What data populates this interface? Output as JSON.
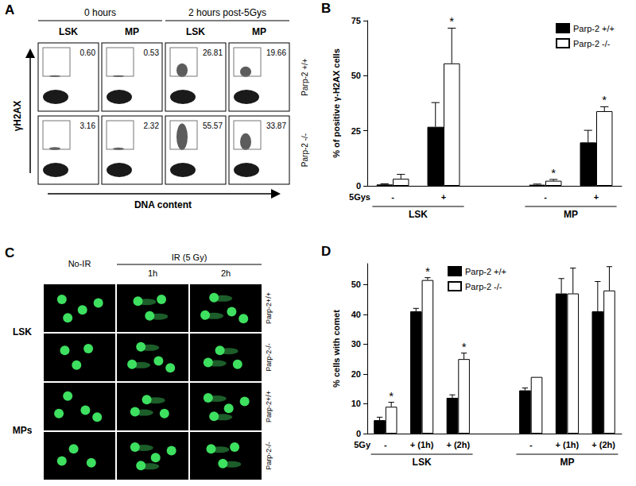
{
  "chart_data": [
    {
      "type": "bar",
      "label": "B",
      "ylabel": "% of positive γ-H2AX cells",
      "categories": [
        "-",
        "+",
        null,
        "-",
        "+"
      ],
      "row_label": "5Gys",
      "groups": [
        {
          "label": "LSK",
          "from": 0,
          "to": 1
        },
        {
          "label": "MP",
          "from": 3,
          "to": 4
        }
      ],
      "series": [
        {
          "name": "Parp-2 +/+",
          "color": "#000000",
          "values": [
            0.6,
            26.8,
            null,
            0.5,
            19.7
          ],
          "errors": [
            0.3,
            11,
            null,
            0.3,
            5.5
          ],
          "significance": [
            null,
            null,
            null,
            null,
            null
          ]
        },
        {
          "name": "Parp-2 -/-",
          "color": "#ffffff",
          "values": [
            3.2,
            55.6,
            null,
            2.3,
            33.9
          ],
          "errors": [
            2,
            16,
            null,
            0.6,
            2
          ],
          "significance": [
            null,
            "*",
            null,
            "*",
            "*"
          ]
        }
      ],
      "ylim": [
        0,
        75
      ],
      "yticks": [
        0,
        25,
        50,
        75
      ],
      "grid": false,
      "legend": "top-right"
    },
    {
      "type": "bar",
      "label": "D",
      "ylabel": "% cells with comet",
      "categories": [
        "-",
        "+ (1h)",
        "+ (2h)",
        null,
        "-",
        "+ (1h)",
        "+ (2h)"
      ],
      "row_label": "5Gy",
      "groups": [
        {
          "label": "LSK",
          "from": 0,
          "to": 2
        },
        {
          "label": "MP",
          "from": 4,
          "to": 6
        }
      ],
      "series": [
        {
          "name": "Parp-2 +/+",
          "color": "#000000",
          "values": [
            4.5,
            41,
            12,
            null,
            14.5,
            47,
            41
          ],
          "errors": [
            1,
            1,
            1,
            null,
            0.8,
            5,
            10
          ],
          "significance": [
            null,
            null,
            null,
            null,
            null,
            null,
            null
          ]
        },
        {
          "name": "Parp-2 -/-",
          "color": "#ffffff",
          "values": [
            9,
            51.5,
            25,
            null,
            19,
            47,
            48
          ],
          "errors": [
            1.5,
            0.8,
            2,
            null,
            null,
            8.5,
            8
          ],
          "significance": [
            "*",
            "*",
            "*",
            null,
            null,
            null,
            null
          ]
        }
      ],
      "ylim": [
        0,
        57
      ],
      "yticks": [
        0,
        10,
        20,
        30,
        40,
        50
      ],
      "grid": false,
      "legend": "top"
    }
  ],
  "panel_a": {
    "label": "A",
    "ylabel": "γH2AX",
    "xlabel": "DNA content",
    "column_groups": [
      {
        "label": "0 hours",
        "columns": [
          "LSK",
          "MP"
        ]
      },
      {
        "label": "2 hours post-5Gys",
        "columns": [
          "LSK",
          "MP"
        ]
      }
    ],
    "rows": [
      {
        "label": "Parp-2 +/+",
        "gated_percent": [
          {
            "value": 0.6,
            "label": "0.60"
          },
          0.53,
          26.81,
          19.66
        ]
      },
      {
        "label": "Parp-2 -/-",
        "gated_percent": [
          3.16,
          2.32,
          55.57,
          33.87
        ]
      }
    ]
  },
  "panel_c": {
    "label": "C",
    "columns": [
      "No-IR",
      "1h",
      "2h"
    ],
    "column_group": "IR (5 Gy)",
    "row_groups": [
      {
        "label": "LSK",
        "rows": [
          "Parp-2+/+",
          "Parp-2-/-"
        ]
      },
      {
        "label": "MPs",
        "rows": [
          "Parp-2+/+",
          "Parp-2-/-"
        ]
      }
    ]
  }
}
